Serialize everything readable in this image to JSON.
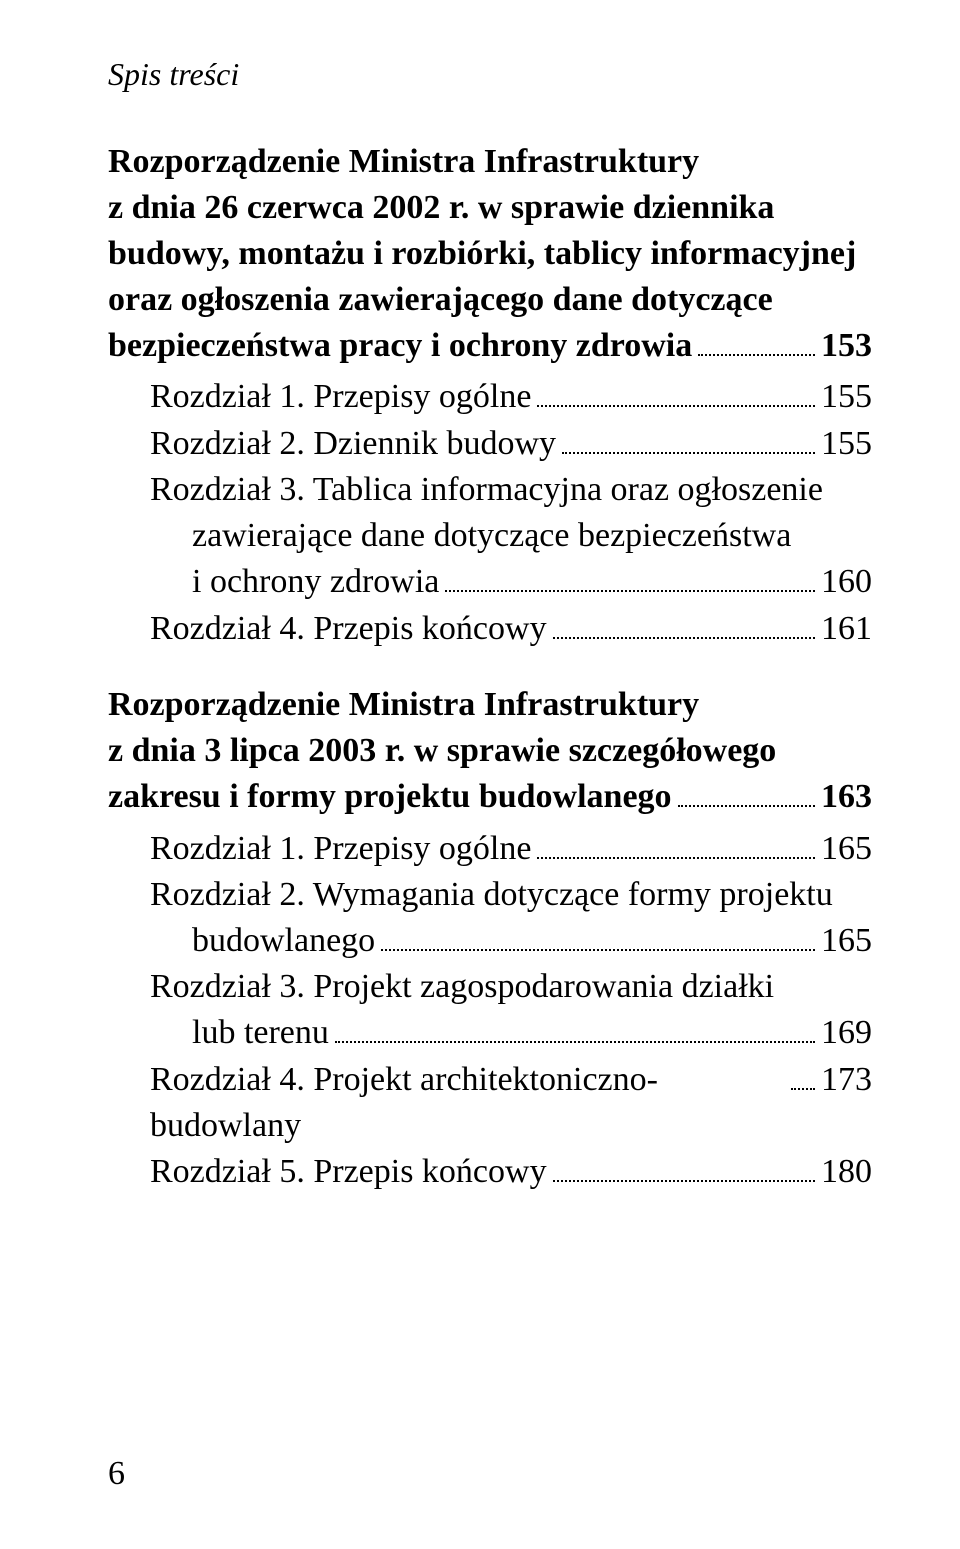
{
  "running_head": "Spis treści",
  "page_number": "6",
  "colors": {
    "text": "#000000",
    "background": "#ffffff"
  },
  "typography": {
    "body_font_family": "Georgia, Times New Roman, serif",
    "body_font_size_pt": 25,
    "running_head_style": "italic",
    "section_title_weight": "bold"
  },
  "sections": [
    {
      "title_lines": [
        "Rozporządzenie Ministra Infrastruktury",
        "z dnia 26 czerwca 2002 r. w sprawie dziennika",
        "budowy, montażu i rozbiórki, tablicy informacyjnej",
        "oraz ogłoszenia zawierającego dane dotyczące"
      ],
      "title_last_line": "bezpieczeństwa pracy i ochrony zdrowia",
      "title_page": "153",
      "entries": [
        {
          "label": "Rozdział 1. Przepisy ogólne",
          "page": "155"
        },
        {
          "label": "Rozdział 2. Dziennik budowy",
          "page": "155"
        },
        {
          "pre_lines": [
            "Rozdział 3. Tablica informacyjna oraz ogłoszenie",
            "zawierające dane dotyczące bezpieczeństwa"
          ],
          "last_line": "i ochrony zdrowia",
          "page": "160",
          "indent": 2
        },
        {
          "label": "Rozdział 4. Przepis końcowy",
          "page": "161"
        }
      ]
    },
    {
      "title_lines": [
        "Rozporządzenie Ministra Infrastruktury",
        "z dnia 3 lipca 2003 r. w sprawie szczegółowego"
      ],
      "title_last_line": "zakresu i formy projektu budowlanego",
      "title_page": "163",
      "entries": [
        {
          "label": "Rozdział 1. Przepisy ogólne",
          "page": "165"
        },
        {
          "pre_lines": [
            "Rozdział 2. Wymagania dotyczące formy projektu"
          ],
          "last_line": "budowlanego",
          "page": "165",
          "indent": 2
        },
        {
          "pre_lines": [
            "Rozdział 3. Projekt zagospodarowania działki"
          ],
          "last_line": "lub terenu",
          "page": "169",
          "indent": 2
        },
        {
          "label": "Rozdział 4. Projekt architektoniczno-budowlany",
          "page": "173"
        },
        {
          "label": "Rozdział 5. Przepis końcowy",
          "page": "180"
        }
      ]
    }
  ]
}
